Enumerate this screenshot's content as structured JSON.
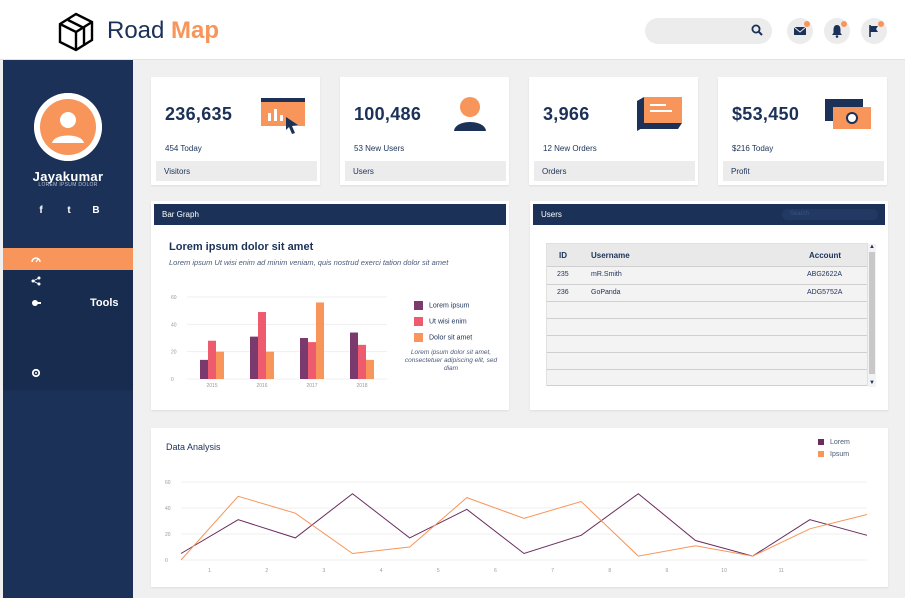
{
  "app": {
    "logo_text": "Road",
    "logo_accent": "Map",
    "accent_color": "#f7955a",
    "primary_color": "#1b3158"
  },
  "header": {
    "search_icon": "search-icon",
    "mail_icon": "mail-icon",
    "bell_icon": "bell-icon",
    "flag_icon": "flag-icon"
  },
  "sidebar": {
    "user_name": "Jayakumar",
    "user_subtitle": "LOREM IPSUM DOLOR",
    "social": [
      "f",
      "t",
      "B"
    ],
    "nav": [
      {
        "icon": "dashboard-icon",
        "label": "",
        "active": true
      },
      {
        "icon": "share-icon",
        "label": ""
      },
      {
        "icon": "tools-icon",
        "label": "Tools"
      },
      {
        "icon": "settings-icon",
        "label": ""
      }
    ]
  },
  "stats": [
    {
      "value": "236,635",
      "sub": "454 Today",
      "label": "Visitors",
      "icon": "chart-screen-icon"
    },
    {
      "value": "100,486",
      "sub": "53 New Users",
      "label": "Users",
      "icon": "user-icon"
    },
    {
      "value": "3,966",
      "sub": "12 New Orders",
      "label": "Orders",
      "icon": "order-icon"
    },
    {
      "value": "$53,450",
      "sub": "$216 Today",
      "label": "Profit",
      "icon": "money-icon"
    }
  ],
  "bar_panel": {
    "header": "Bar Graph",
    "title": "Lorem ipsum dolor sit amet",
    "subtitle": "Lorem ipsum Ut wisi enim ad minim veniam, quis nostrud exerci tation dolor sit amet",
    "note": "Lorem ipsum dolor sit amet, consectetuer adipiscing elit, sed diam"
  },
  "users_panel": {
    "header": "Users",
    "search_placeholder": "Search",
    "columns": [
      "ID",
      "Username",
      "Account"
    ],
    "rows": [
      [
        "235",
        "mR.Smith",
        "ABG2622A"
      ],
      [
        "236",
        "GoPanda",
        "ADG5752A"
      ]
    ]
  },
  "data_panel": {
    "title": "Data Analysis"
  },
  "chart_data": [
    {
      "type": "bar",
      "title": "Bar Graph",
      "categories": [
        "2015",
        "2016",
        "2017",
        "2018"
      ],
      "ylim": [
        0,
        60
      ],
      "yticks": [
        0,
        20,
        40,
        60
      ],
      "series": [
        {
          "name": "Lorem ipsum",
          "color": "#7b3a6e",
          "values": [
            14,
            31,
            30,
            34
          ]
        },
        {
          "name": "Ut wisi enim",
          "color": "#ef5b6e",
          "values": [
            28,
            49,
            27,
            25
          ]
        },
        {
          "name": "Dolor sit amet",
          "color": "#f7955a",
          "values": [
            20,
            20,
            56,
            14
          ]
        }
      ]
    },
    {
      "type": "line",
      "title": "Data Analysis",
      "x": [
        0,
        1,
        2,
        3,
        4,
        5,
        6,
        7,
        8,
        9,
        10,
        11,
        12
      ],
      "xtick_labels": [
        "1",
        "2",
        "3",
        "4",
        "5",
        "6",
        "7",
        "8",
        "9",
        "10",
        "11"
      ],
      "ylim": [
        0,
        60
      ],
      "yticks": [
        0,
        20,
        40,
        60
      ],
      "series": [
        {
          "name": "Lorem",
          "color": "#6a2c5e",
          "values": [
            5,
            31,
            17,
            51,
            17,
            39,
            5,
            19,
            51,
            15,
            3,
            31,
            19
          ]
        },
        {
          "name": "Ipsum",
          "color": "#f7955a",
          "values": [
            0,
            49,
            36,
            5,
            10,
            48,
            32,
            45,
            3,
            11,
            3,
            24,
            35
          ]
        }
      ]
    }
  ]
}
